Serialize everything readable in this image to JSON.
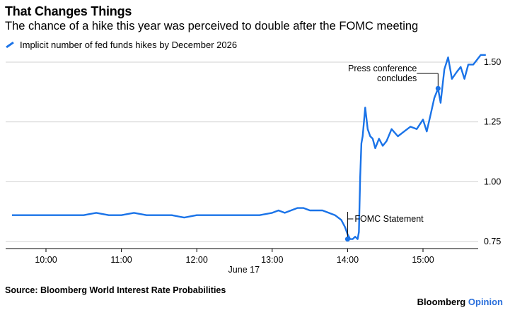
{
  "header": {
    "title": "That Changes Things",
    "subtitle": "The chance of a hike this year was perceived to double after the FOMC meeting"
  },
  "footer": {
    "source": "Source: Bloomberg World Interest Rate Probabilities",
    "brand_main": "Bloomberg",
    "brand_accent": "Opinion"
  },
  "chart_data": {
    "type": "line",
    "title": "That Changes Things",
    "subtitle": "The chance of a hike this year was perceived to double after the FOMC meeting",
    "xlabel": "June 17",
    "ylabel": "",
    "x_ticks": [
      "10:00",
      "11:00",
      "12:00",
      "13:00",
      "14:00",
      "15:00"
    ],
    "y_ticks": [
      "0.75",
      "1.00",
      "1.25",
      "1.50"
    ],
    "xlim": [
      "09:30",
      "15:55"
    ],
    "ylim": [
      0.72,
      1.55
    ],
    "grid": "horizontal",
    "legend_position": "top-left",
    "line_color": "#1a73e8",
    "series": [
      {
        "name": "Implicit number of fed funds hikes by December 2026",
        "x": [
          "09:33",
          "09:40",
          "09:50",
          "10:00",
          "10:10",
          "10:20",
          "10:30",
          "10:40",
          "10:50",
          "11:00",
          "11:10",
          "11:20",
          "11:30",
          "11:40",
          "11:50",
          "12:00",
          "12:10",
          "12:20",
          "12:30",
          "12:40",
          "12:50",
          "13:00",
          "13:05",
          "13:10",
          "13:15",
          "13:20",
          "13:25",
          "13:30",
          "13:40",
          "13:45",
          "13:50",
          "13:55",
          "13:58",
          "14:00",
          "14:02",
          "14:04",
          "14:06",
          "14:08",
          "14:09",
          "14:10",
          "14:11",
          "14:12",
          "14:14",
          "14:16",
          "14:18",
          "14:20",
          "14:22",
          "14:25",
          "14:28",
          "14:31",
          "14:35",
          "14:40",
          "14:45",
          "14:50",
          "14:55",
          "15:00",
          "15:03",
          "15:06",
          "15:09",
          "15:12",
          "15:14",
          "15:17",
          "15:20",
          "15:23",
          "15:27",
          "15:30",
          "15:33",
          "15:36",
          "15:40",
          "15:43",
          "15:46",
          "15:50"
        ],
        "y": [
          0.86,
          0.86,
          0.86,
          0.86,
          0.86,
          0.86,
          0.86,
          0.87,
          0.86,
          0.86,
          0.87,
          0.86,
          0.86,
          0.86,
          0.85,
          0.86,
          0.86,
          0.86,
          0.86,
          0.86,
          0.86,
          0.87,
          0.88,
          0.87,
          0.88,
          0.89,
          0.89,
          0.88,
          0.88,
          0.87,
          0.86,
          0.84,
          0.81,
          0.78,
          0.76,
          0.76,
          0.77,
          0.76,
          0.79,
          1.02,
          1.16,
          1.19,
          1.31,
          1.22,
          1.19,
          1.18,
          1.14,
          1.18,
          1.15,
          1.17,
          1.22,
          1.19,
          1.21,
          1.23,
          1.22,
          1.26,
          1.21,
          1.28,
          1.35,
          1.39,
          1.33,
          1.47,
          1.52,
          1.43,
          1.46,
          1.48,
          1.43,
          1.49,
          1.49,
          1.51,
          1.53,
          1.53
        ]
      }
    ],
    "annotations": [
      {
        "label": "FOMC Statement",
        "x": "14:00",
        "y": 0.76
      },
      {
        "label_lines": [
          "Press conference",
          "concludes"
        ],
        "x": "15:12",
        "y": 1.39
      }
    ]
  }
}
